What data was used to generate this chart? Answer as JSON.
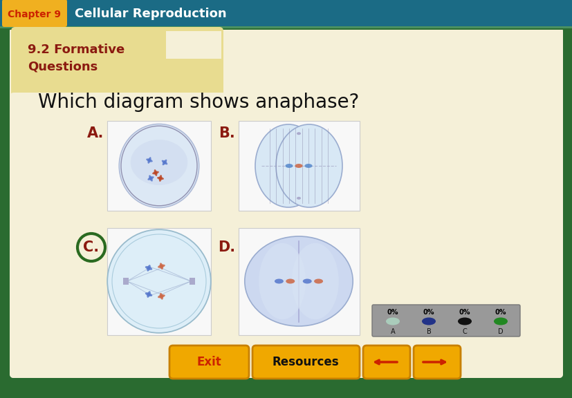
{
  "header_bg": "#1b6b85",
  "header_stripe_top": "#4a9060",
  "chapter_label": "Chapter 9",
  "chapter_label_color": "#cc2200",
  "chapter_label_bg": "#f0b020",
  "header_text": "Cellular Reproduction",
  "header_text_color": "#ffffff",
  "outer_bg": "#2a6b30",
  "outer_border": "#3a8a40",
  "inner_border": "#2a6b30",
  "content_bg": "#f5f0d8",
  "tab_bg": "#e8dc90",
  "section_label_line1": "9.2 Formative",
  "section_label_line2": "Questions",
  "section_label_color": "#8b1a10",
  "question_text": "Which diagram shows anaphase?",
  "question_color": "#111111",
  "option_labels": [
    "A.",
    "B.",
    "C.",
    "D."
  ],
  "option_label_color": "#8b1a10",
  "correct_option": "C",
  "correct_ring_color": "#2a6a20",
  "answer_bar_bg": "#888888",
  "answer_pcts": [
    "0%",
    "0%",
    "0%",
    "0%"
  ],
  "exit_btn_bg": "#f0a800",
  "exit_btn_text": "Exit",
  "exit_text_color": "#cc2200",
  "resources_btn_bg": "#f0a800",
  "resources_btn_text": "Resources",
  "resources_text_color": "#111111",
  "arrow_btn_bg": "#f0a800",
  "img_border": "#cccccc",
  "img_bg": "#f8f8f8",
  "cell_a_bg": "#d8e4f0",
  "cell_b_bg": "#d5e2ee",
  "cell_c_bg": "#d8e8f2",
  "cell_d_bg": "#ccd4e8",
  "puck_colors": [
    "#aaccbb",
    "#223388",
    "#111111",
    "#228822"
  ]
}
